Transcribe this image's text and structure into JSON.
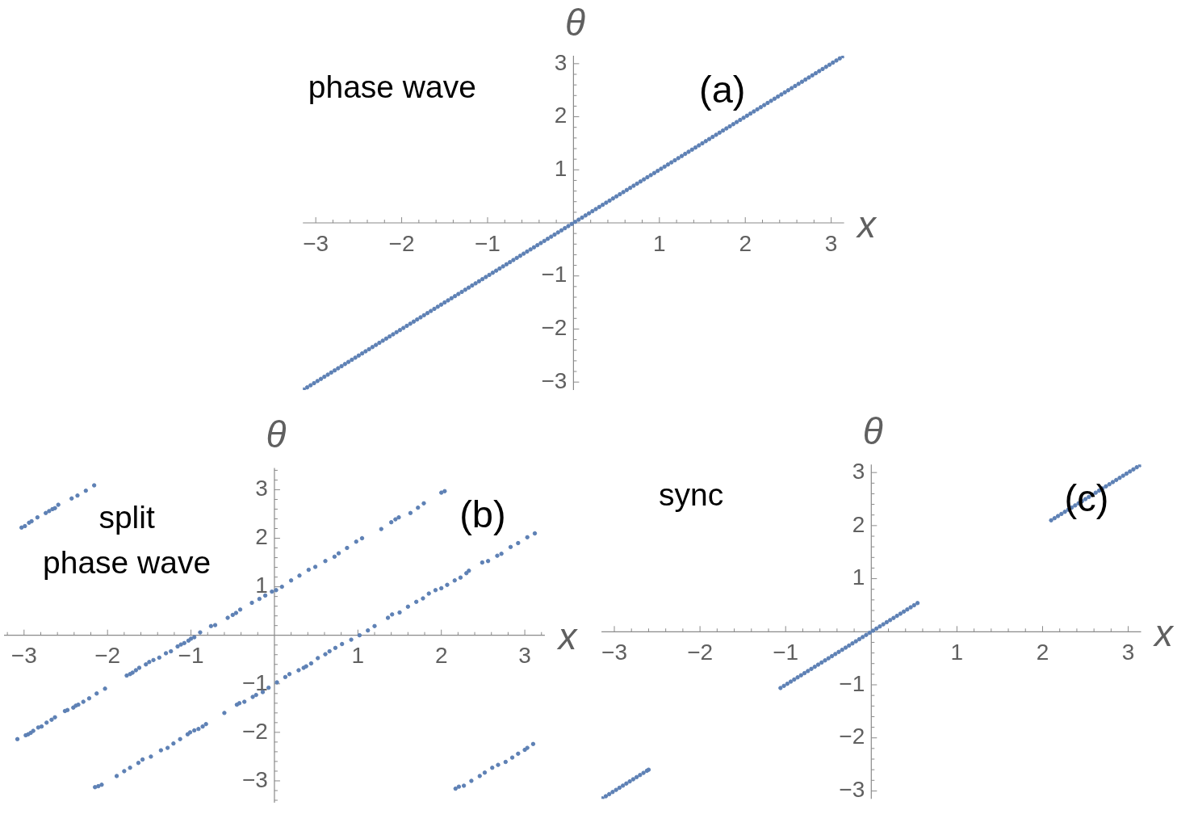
{
  "chart_data": [
    {
      "type": "scatter",
      "xlabel": "x",
      "ylabel": "θ",
      "annotations": [
        "phase wave",
        "(a)"
      ],
      "color": "#5e81b5",
      "marker": "circle",
      "xlim": [
        -3.15,
        3.15
      ],
      "ylim": [
        -3.15,
        3.15
      ],
      "xticks": [
        {
          "value": -3,
          "label": "−3"
        },
        {
          "value": -2.8,
          "label": null
        },
        {
          "value": -2.6,
          "label": null
        },
        {
          "value": -2.4,
          "label": null
        },
        {
          "value": -2.2,
          "label": null
        },
        {
          "value": -2,
          "label": "−2"
        },
        {
          "value": -1.8,
          "label": null
        },
        {
          "value": -1.6,
          "label": null
        },
        {
          "value": -1.4,
          "label": null
        },
        {
          "value": -1.2,
          "label": null
        },
        {
          "value": -1,
          "label": "−1"
        },
        {
          "value": -0.8,
          "label": null
        },
        {
          "value": -0.6,
          "label": null
        },
        {
          "value": -0.4,
          "label": null
        },
        {
          "value": -0.2,
          "label": null
        },
        {
          "value": 0.2,
          "label": null
        },
        {
          "value": 0.4,
          "label": null
        },
        {
          "value": 0.6,
          "label": null
        },
        {
          "value": 0.8,
          "label": null
        },
        1,
        {
          "value": 1.2,
          "label": null
        },
        {
          "value": 1.4,
          "label": null
        },
        {
          "value": 1.6,
          "label": null
        },
        {
          "value": 1.8,
          "label": null
        },
        2,
        {
          "value": 2.2,
          "label": null
        },
        {
          "value": 2.4,
          "label": null
        },
        {
          "value": 2.6,
          "label": null
        },
        {
          "value": 2.8,
          "label": null
        },
        3
      ],
      "yticks": [
        {
          "value": -3,
          "label": "−3"
        },
        {
          "value": -2.8,
          "label": null
        },
        {
          "value": -2.6,
          "label": null
        },
        {
          "value": -2.4,
          "label": null
        },
        {
          "value": -2.2,
          "label": null
        },
        {
          "value": -2,
          "label": "−2"
        },
        {
          "value": -1.8,
          "label": null
        },
        {
          "value": -1.6,
          "label": null
        },
        {
          "value": -1.4,
          "label": null
        },
        {
          "value": -1.2,
          "label": null
        },
        {
          "value": -1,
          "label": "−1"
        },
        {
          "value": -0.8,
          "label": null
        },
        {
          "value": -0.6,
          "label": null
        },
        {
          "value": -0.4,
          "label": null
        },
        {
          "value": -0.2,
          "label": null
        },
        {
          "value": 0.2,
          "label": null
        },
        {
          "value": 0.4,
          "label": null
        },
        {
          "value": 0.6,
          "label": null
        },
        {
          "value": 0.8,
          "label": null
        },
        1,
        {
          "value": 1.2,
          "label": null
        },
        {
          "value": 1.4,
          "label": null
        },
        {
          "value": 1.6,
          "label": null
        },
        {
          "value": 1.8,
          "label": null
        },
        2,
        {
          "value": 2.2,
          "label": null
        },
        {
          "value": 2.4,
          "label": null
        },
        {
          "value": 2.6,
          "label": null
        },
        {
          "value": 2.8,
          "label": null
        },
        3
      ],
      "x": [
        -3.14,
        -3.1,
        -3.06,
        -3.02,
        -2.98,
        -2.94,
        -2.9,
        -2.86,
        -2.82,
        -2.78,
        -2.74,
        -2.7,
        -2.66,
        -2.62,
        -2.58,
        -2.54,
        -2.5,
        -2.46,
        -2.42,
        -2.38,
        -2.34,
        -2.3,
        -2.26,
        -2.22,
        -2.18,
        -2.14,
        -2.1,
        -2.06,
        -2.02,
        -1.98,
        -1.94,
        -1.9,
        -1.86,
        -1.82,
        -1.78,
        -1.74,
        -1.7,
        -1.66,
        -1.62,
        -1.58,
        -1.54,
        -1.5,
        -1.46,
        -1.42,
        -1.38,
        -1.34,
        -1.3,
        -1.26,
        -1.22,
        -1.18,
        -1.14,
        -1.1,
        -1.06,
        -1.02,
        -0.98,
        -0.94,
        -0.9,
        -0.86,
        -0.82,
        -0.78,
        -0.74,
        -0.7,
        -0.66,
        -0.62,
        -0.58,
        -0.54,
        -0.5,
        -0.46,
        -0.42,
        -0.38,
        -0.34,
        -0.3,
        -0.26,
        -0.22,
        -0.18,
        -0.14,
        -0.1,
        -0.06,
        -0.02,
        0.02,
        0.06,
        0.1,
        0.14,
        0.18,
        0.22,
        0.26,
        0.3,
        0.34,
        0.38,
        0.42,
        0.46,
        0.5,
        0.54,
        0.58,
        0.62,
        0.66,
        0.7,
        0.74,
        0.78,
        0.82,
        0.86,
        0.9,
        0.94,
        0.98,
        1.02,
        1.06,
        1.1,
        1.14,
        1.18,
        1.22,
        1.26,
        1.3,
        1.34,
        1.38,
        1.42,
        1.46,
        1.5,
        1.54,
        1.58,
        1.62,
        1.66,
        1.7,
        1.74,
        1.78,
        1.82,
        1.86,
        1.9,
        1.94,
        1.98,
        2.02,
        2.06,
        2.1,
        2.14,
        2.18,
        2.22,
        2.26,
        2.3,
        2.34,
        2.38,
        2.42,
        2.46,
        2.5,
        2.54,
        2.58,
        2.62,
        2.66,
        2.7,
        2.74,
        2.78,
        2.82,
        2.86,
        2.9,
        2.94,
        2.98,
        3.02,
        3.06,
        3.1,
        3.14
      ],
      "values": [
        -3.14,
        -3.1,
        -3.06,
        -3.02,
        -2.98,
        -2.94,
        -2.9,
        -2.86,
        -2.82,
        -2.78,
        -2.74,
        -2.7,
        -2.66,
        -2.62,
        -2.58,
        -2.54,
        -2.5,
        -2.46,
        -2.42,
        -2.38,
        -2.34,
        -2.3,
        -2.26,
        -2.22,
        -2.18,
        -2.14,
        -2.1,
        -2.06,
        -2.02,
        -1.98,
        -1.94,
        -1.9,
        -1.86,
        -1.82,
        -1.78,
        -1.74,
        -1.7,
        -1.66,
        -1.62,
        -1.58,
        -1.54,
        -1.5,
        -1.46,
        -1.42,
        -1.38,
        -1.34,
        -1.3,
        -1.26,
        -1.22,
        -1.18,
        -1.14,
        -1.1,
        -1.06,
        -1.02,
        -0.98,
        -0.94,
        -0.9,
        -0.86,
        -0.82,
        -0.78,
        -0.74,
        -0.7,
        -0.66,
        -0.62,
        -0.58,
        -0.54,
        -0.5,
        -0.46,
        -0.42,
        -0.38,
        -0.34,
        -0.3,
        -0.26,
        -0.22,
        -0.18,
        -0.14,
        -0.1,
        -0.06,
        -0.02,
        0.02,
        0.06,
        0.1,
        0.14,
        0.18,
        0.22,
        0.26,
        0.3,
        0.34,
        0.38,
        0.42,
        0.46,
        0.5,
        0.54,
        0.58,
        0.62,
        0.66,
        0.7,
        0.74,
        0.78,
        0.82,
        0.86,
        0.9,
        0.94,
        0.98,
        1.02,
        1.06,
        1.1,
        1.14,
        1.18,
        1.22,
        1.26,
        1.3,
        1.34,
        1.38,
        1.42,
        1.46,
        1.5,
        1.54,
        1.58,
        1.62,
        1.66,
        1.7,
        1.74,
        1.78,
        1.82,
        1.86,
        1.9,
        1.94,
        1.98,
        2.02,
        2.06,
        2.1,
        2.14,
        2.18,
        2.22,
        2.26,
        2.3,
        2.34,
        2.38,
        2.42,
        2.46,
        2.5,
        2.54,
        2.58,
        2.62,
        2.66,
        2.7,
        2.74,
        2.78,
        2.82,
        2.86,
        2.9,
        2.94,
        2.98,
        3.02,
        3.06,
        3.1,
        3.14
      ]
    },
    {
      "type": "scatter",
      "xlabel": "x",
      "ylabel": "θ",
      "annotations": [
        "split\nphase wave",
        "(b)"
      ],
      "color": "#5e81b5",
      "marker": "circle",
      "xlim": [
        -3.24,
        3.24
      ],
      "ylim": [
        -3.45,
        3.45
      ],
      "xticks": [
        {
          "value": -3.2,
          "label": null
        },
        {
          "value": -3,
          "label": "−3"
        },
        {
          "value": -2.8,
          "label": null
        },
        {
          "value": -2.6,
          "label": null
        },
        {
          "value": -2.4,
          "label": null
        },
        {
          "value": -2.2,
          "label": null
        },
        {
          "value": -2,
          "label": "−2"
        },
        {
          "value": -1.8,
          "label": null
        },
        {
          "value": -1.6,
          "label": null
        },
        {
          "value": -1.4,
          "label": null
        },
        {
          "value": -1.2,
          "label": null
        },
        {
          "value": -1,
          "label": "−1"
        },
        {
          "value": -0.8,
          "label": null
        },
        {
          "value": -0.6,
          "label": null
        },
        {
          "value": -0.4,
          "label": null
        },
        {
          "value": -0.2,
          "label": null
        },
        {
          "value": 0.2,
          "label": null
        },
        {
          "value": 0.4,
          "label": null
        },
        {
          "value": 0.6,
          "label": null
        },
        {
          "value": 0.8,
          "label": null
        },
        1,
        {
          "value": 1.2,
          "label": null
        },
        {
          "value": 1.4,
          "label": null
        },
        {
          "value": 1.6,
          "label": null
        },
        {
          "value": 1.8,
          "label": null
        },
        2,
        {
          "value": 2.2,
          "label": null
        },
        {
          "value": 2.4,
          "label": null
        },
        {
          "value": 2.6,
          "label": null
        },
        {
          "value": 2.8,
          "label": null
        },
        3,
        {
          "value": 3.2,
          "label": null
        }
      ],
      "yticks": [
        {
          "value": -3.4,
          "label": null
        },
        {
          "value": -3.2,
          "label": null
        },
        {
          "value": -3,
          "label": "−3"
        },
        {
          "value": -2.8,
          "label": null
        },
        {
          "value": -2.6,
          "label": null
        },
        {
          "value": -2.4,
          "label": null
        },
        {
          "value": -2.2,
          "label": null
        },
        {
          "value": -2,
          "label": "−2"
        },
        {
          "value": -1.8,
          "label": null
        },
        {
          "value": -1.6,
          "label": null
        },
        {
          "value": -1.4,
          "label": null
        },
        {
          "value": -1.2,
          "label": null
        },
        {
          "value": -1,
          "label": "−1"
        },
        {
          "value": -0.8,
          "label": null
        },
        {
          "value": -0.6,
          "label": null
        },
        {
          "value": -0.4,
          "label": null
        },
        {
          "value": -0.2,
          "label": null
        },
        {
          "value": 0.2,
          "label": null
        },
        {
          "value": 0.4,
          "label": null
        },
        {
          "value": 0.6,
          "label": null
        },
        {
          "value": 0.8,
          "label": null
        },
        1,
        {
          "value": 1.2,
          "label": null
        },
        {
          "value": 1.4,
          "label": null
        },
        {
          "value": 1.6,
          "label": null
        },
        {
          "value": 1.8,
          "label": null
        },
        2,
        {
          "value": 2.2,
          "label": null
        },
        {
          "value": 2.4,
          "label": null
        },
        {
          "value": 2.6,
          "label": null
        },
        {
          "value": 2.8,
          "label": null
        },
        3,
        {
          "value": 3.2,
          "label": null
        },
        {
          "value": 3.4,
          "label": null
        }
      ],
      "x": [
        -3.03,
        -2.99,
        -2.94,
        -2.91,
        -2.84,
        -2.74,
        -2.7,
        -2.66,
        -2.63,
        -2.59,
        -2.43,
        -2.36,
        -2.26,
        -2.16,
        -3.08,
        -2.98,
        -2.95,
        -2.92,
        -2.89,
        -2.83,
        -2.79,
        -2.73,
        -2.67,
        -2.63,
        -2.51,
        -2.48,
        -2.41,
        -2.38,
        -2.35,
        -2.29,
        -2.22,
        -2.13,
        -2.03,
        -1.77,
        -1.73,
        -1.7,
        -1.66,
        -1.62,
        -1.54,
        -1.5,
        -1.45,
        -1.38,
        -1.3,
        -1.24,
        -1.16,
        -1.12,
        -1.08,
        -1.03,
        -1,
        -0.96,
        -0.89,
        -0.76,
        -0.71,
        -0.56,
        -0.5,
        -0.46,
        -0.41,
        -0.27,
        -0.18,
        -0.11,
        -0.03,
        0.02,
        0.09,
        0.2,
        0.3,
        0.41,
        0.49,
        0.61,
        0.72,
        0.77,
        0.87,
        0.98,
        1.05,
        1.28,
        1.4,
        1.45,
        1.49,
        1.63,
        1.72,
        1.79,
        2,
        2.04,
        -2.15,
        -2.11,
        -2.07,
        -1.89,
        -1.8,
        -1.73,
        -1.63,
        -1.58,
        -1.48,
        -1.36,
        -1.28,
        -1.21,
        -1.13,
        -1.04,
        -1.01,
        -0.96,
        -0.91,
        -0.86,
        -0.82,
        -0.6,
        -0.45,
        -0.42,
        -0.36,
        -0.26,
        -0.22,
        -0.14,
        -0.07,
        0.03,
        0.13,
        0.18,
        0.29,
        0.35,
        0.38,
        0.44,
        0.52,
        0.61,
        0.66,
        0.73,
        0.81,
        0.92,
        1.02,
        1.12,
        1.2,
        1.36,
        1.41,
        1.5,
        1.6,
        1.7,
        1.78,
        1.85,
        1.93,
        2,
        2.07,
        2.16,
        2.23,
        2.3,
        2.33,
        2.49,
        2.56,
        2.67,
        2.72,
        2.83,
        2.92,
        3.03,
        3.12,
        2.17,
        2.21,
        2.27,
        2.36,
        2.46,
        2.52,
        2.61,
        2.68,
        2.77,
        2.85,
        2.92,
        3,
        3.03,
        3.1
      ],
      "values": [
        2.22,
        2.25,
        2.32,
        2.35,
        2.43,
        2.52,
        2.56,
        2.6,
        2.62,
        2.69,
        2.82,
        2.88,
        2.98,
        3.09,
        -2.14,
        -2.06,
        -2.04,
        -2.01,
        -1.97,
        -1.9,
        -1.88,
        -1.8,
        -1.74,
        -1.69,
        -1.56,
        -1.54,
        -1.49,
        -1.45,
        -1.43,
        -1.37,
        -1.3,
        -1.2,
        -1.1,
        -0.83,
        -0.8,
        -0.77,
        -0.72,
        -0.67,
        -0.6,
        -0.55,
        -0.51,
        -0.46,
        -0.37,
        -0.33,
        -0.23,
        -0.19,
        -0.16,
        -0.11,
        -0.07,
        -0.04,
        0.06,
        0.19,
        0.21,
        0.36,
        0.42,
        0.46,
        0.53,
        0.67,
        0.75,
        0.82,
        0.9,
        0.93,
        1,
        1.13,
        1.23,
        1.35,
        1.41,
        1.53,
        1.62,
        1.69,
        1.8,
        1.93,
        2,
        2.19,
        2.33,
        2.39,
        2.43,
        2.52,
        2.63,
        2.72,
        2.94,
        2.97,
        -3.13,
        -3.11,
        -3.08,
        -2.9,
        -2.8,
        -2.73,
        -2.63,
        -2.56,
        -2.5,
        -2.37,
        -2.32,
        -2.23,
        -2.14,
        -2.04,
        -2,
        -1.96,
        -1.93,
        -1.88,
        -1.83,
        -1.6,
        -1.43,
        -1.4,
        -1.37,
        -1.27,
        -1.23,
        -1.17,
        -1.08,
        -0.97,
        -0.86,
        -0.8,
        -0.72,
        -0.67,
        -0.64,
        -0.58,
        -0.47,
        -0.39,
        -0.33,
        -0.26,
        -0.18,
        -0.09,
        0,
        0.1,
        0.19,
        0.36,
        0.43,
        0.47,
        0.59,
        0.69,
        0.76,
        0.86,
        0.93,
        0.97,
        1.04,
        1.13,
        1.19,
        1.28,
        1.33,
        1.5,
        1.53,
        1.64,
        1.68,
        1.82,
        1.9,
        2.02,
        2.1,
        -3.16,
        -3.12,
        -3.1,
        -3,
        -2.9,
        -2.83,
        -2.73,
        -2.67,
        -2.61,
        -2.52,
        -2.44,
        -2.36,
        -2.32,
        -2.24
      ]
    },
    {
      "type": "scatter",
      "xlabel": "x",
      "ylabel": "θ",
      "annotations": [
        "sync",
        "(c)"
      ],
      "color": "#5e81b5",
      "marker": "circle",
      "xlim": [
        -3.15,
        3.15
      ],
      "ylim": [
        -3.15,
        3.15
      ],
      "xticks": [
        {
          "value": -3,
          "label": "−3"
        },
        {
          "value": -2.8,
          "label": null
        },
        {
          "value": -2.6,
          "label": null
        },
        {
          "value": -2.4,
          "label": null
        },
        {
          "value": -2.2,
          "label": null
        },
        {
          "value": -2,
          "label": "−2"
        },
        {
          "value": -1.8,
          "label": null
        },
        {
          "value": -1.6,
          "label": null
        },
        {
          "value": -1.4,
          "label": null
        },
        {
          "value": -1.2,
          "label": null
        },
        {
          "value": -1,
          "label": "−1"
        },
        {
          "value": -0.8,
          "label": null
        },
        {
          "value": -0.6,
          "label": null
        },
        {
          "value": -0.4,
          "label": null
        },
        {
          "value": -0.2,
          "label": null
        },
        {
          "value": 0.2,
          "label": null
        },
        {
          "value": 0.4,
          "label": null
        },
        {
          "value": 0.6,
          "label": null
        },
        {
          "value": 0.8,
          "label": null
        },
        1,
        {
          "value": 1.2,
          "label": null
        },
        {
          "value": 1.4,
          "label": null
        },
        {
          "value": 1.6,
          "label": null
        },
        {
          "value": 1.8,
          "label": null
        },
        2,
        {
          "value": 2.2,
          "label": null
        },
        {
          "value": 2.4,
          "label": null
        },
        {
          "value": 2.6,
          "label": null
        },
        {
          "value": 2.8,
          "label": null
        },
        3
      ],
      "yticks": [
        {
          "value": -3,
          "label": "−3"
        },
        {
          "value": -2.8,
          "label": null
        },
        {
          "value": -2.6,
          "label": null
        },
        {
          "value": -2.4,
          "label": null
        },
        {
          "value": -2.2,
          "label": null
        },
        {
          "value": -2,
          "label": "−2"
        },
        {
          "value": -1.8,
          "label": null
        },
        {
          "value": -1.6,
          "label": null
        },
        {
          "value": -1.4,
          "label": null
        },
        {
          "value": -1.2,
          "label": null
        },
        {
          "value": -1,
          "label": "−1"
        },
        {
          "value": -0.8,
          "label": null
        },
        {
          "value": -0.6,
          "label": null
        },
        {
          "value": -0.4,
          "label": null
        },
        {
          "value": -0.2,
          "label": null
        },
        {
          "value": 0.2,
          "label": null
        },
        {
          "value": 0.4,
          "label": null
        },
        {
          "value": 0.6,
          "label": null
        },
        {
          "value": 0.8,
          "label": null
        },
        1,
        {
          "value": 1.2,
          "label": null
        },
        {
          "value": 1.4,
          "label": null
        },
        {
          "value": 1.6,
          "label": null
        },
        {
          "value": 1.8,
          "label": null
        },
        2,
        {
          "value": 2.2,
          "label": null
        },
        {
          "value": 2.4,
          "label": null
        },
        {
          "value": 2.6,
          "label": null
        },
        {
          "value": 2.8,
          "label": null
        },
        3
      ],
      "x": [
        -3.14,
        -3.1,
        -3.06,
        -3.02,
        -2.98,
        -2.94,
        -2.9,
        -2.86,
        -2.82,
        -2.78,
        -2.74,
        -2.7,
        -2.66,
        -2.62,
        -2.6,
        -1.06,
        -1.02,
        -0.98,
        -0.94,
        -0.9,
        -0.86,
        -0.82,
        -0.78,
        -0.74,
        -0.7,
        -0.66,
        -0.62,
        -0.58,
        -0.54,
        -0.5,
        -0.46,
        -0.42,
        -0.38,
        -0.34,
        -0.3,
        -0.26,
        -0.22,
        -0.18,
        -0.14,
        -0.1,
        -0.06,
        -0.02,
        0.02,
        0.06,
        0.1,
        0.14,
        0.18,
        0.22,
        0.26,
        0.3,
        0.34,
        0.38,
        0.42,
        0.46,
        0.5,
        0.54,
        2.1,
        2.14,
        2.18,
        2.22,
        2.26,
        2.3,
        2.34,
        2.38,
        2.42,
        2.46,
        2.5,
        2.54,
        2.58,
        2.62,
        2.66,
        2.7,
        2.74,
        2.78,
        2.82,
        2.86,
        2.9,
        2.94,
        2.98,
        3.02,
        3.06,
        3.1,
        3.14
      ],
      "values": [
        -3.14,
        -3.1,
        -3.06,
        -3.02,
        -2.98,
        -2.94,
        -2.9,
        -2.86,
        -2.82,
        -2.78,
        -2.74,
        -2.7,
        -2.66,
        -2.62,
        -2.6,
        -1.06,
        -1.02,
        -0.98,
        -0.94,
        -0.9,
        -0.86,
        -0.82,
        -0.78,
        -0.74,
        -0.7,
        -0.66,
        -0.62,
        -0.58,
        -0.54,
        -0.5,
        -0.46,
        -0.42,
        -0.38,
        -0.34,
        -0.3,
        -0.26,
        -0.22,
        -0.18,
        -0.14,
        -0.1,
        -0.06,
        -0.02,
        0.02,
        0.06,
        0.1,
        0.14,
        0.18,
        0.22,
        0.26,
        0.3,
        0.34,
        0.38,
        0.42,
        0.46,
        0.5,
        0.54,
        2.1,
        2.14,
        2.18,
        2.22,
        2.26,
        2.3,
        2.34,
        2.38,
        2.42,
        2.46,
        2.5,
        2.54,
        2.58,
        2.62,
        2.66,
        2.7,
        2.74,
        2.78,
        2.82,
        2.86,
        2.9,
        2.94,
        2.98,
        3.02,
        3.06,
        3.1,
        3.14
      ]
    }
  ]
}
